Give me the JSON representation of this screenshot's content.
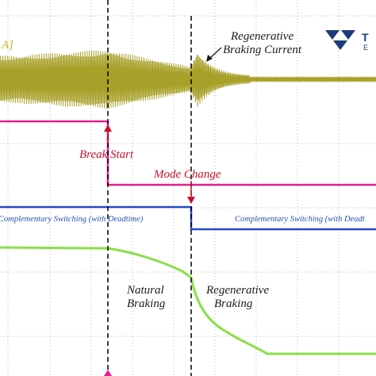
{
  "annotations": {
    "current_scale": "A]",
    "regen_current_line1": "Regenerative",
    "regen_current_line2": "Braking Current",
    "break_start": "Break Start",
    "mode_change": "Mode Change",
    "comp_switch_left": "Complementary Switching (with Deadtime)",
    "comp_switch_right": "Complementary Switching (with Deadt",
    "natural_line1": "Natural",
    "natural_line2": "Braking",
    "regen_line1": "Regenerative",
    "regen_line2": "Braking"
  },
  "logo": {
    "text1": "T",
    "text2": "E"
  },
  "colors": {
    "background": "#ffffff",
    "grid": "#b8b8b8",
    "current_trace": "#a8a028",
    "magenta_trace": "#e0208c",
    "blue_trace": "#2848c8",
    "speed_trace": "#88e048",
    "cursor": "#000000",
    "annotation_red": "#c8102e",
    "annotation_dark": "#1a1a1a",
    "annotation_blue": "#2850b8",
    "logo_blue": "#1a3c7a",
    "label_yellow": "#c8b428"
  },
  "icons": [
    "teledyne-logo-icon",
    "break-start-arrow-icon",
    "mode-change-arrow-icon",
    "trigger-marker-icon"
  ]
}
